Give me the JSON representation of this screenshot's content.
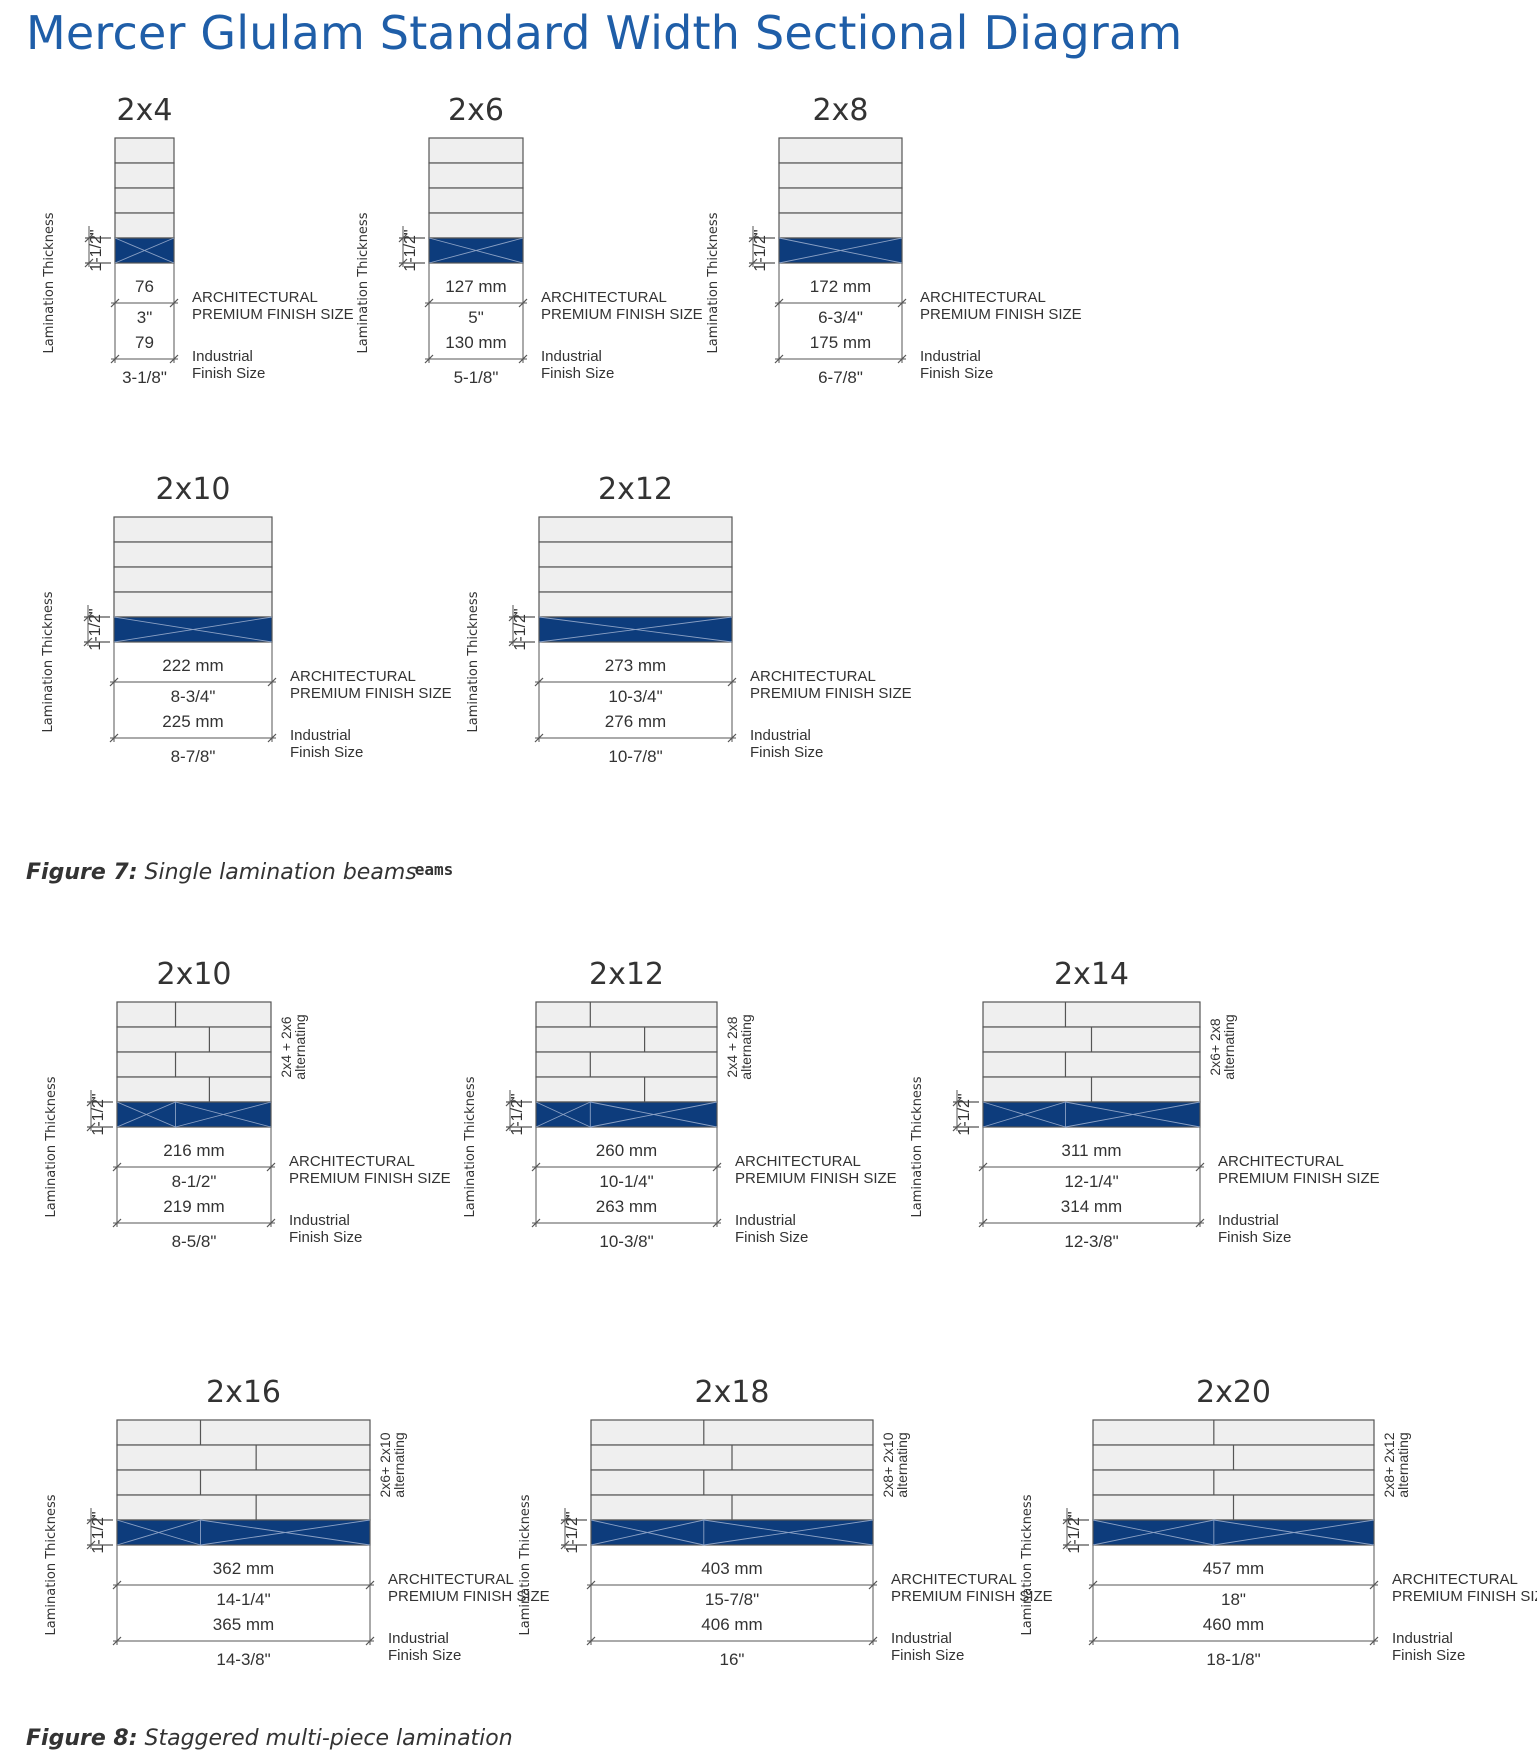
{
  "page_title": "Mercer Glulam Standard Width Sectional Diagram",
  "colors": {
    "title": "#1f5ea8",
    "lamination_highlight": "#0d3c7c",
    "lamination_board": "#efefef",
    "line": "#555555",
    "text": "#333333"
  },
  "labels": {
    "lamination_thickness": "Lamination Thickness",
    "lamination_dim": "1-1/2\"",
    "architectural_line1": "ARCHITECTURAL",
    "architectural_line2": "PREMIUM FINISH SIZE",
    "industrial_line1": "Industrial",
    "industrial_line2": "Finish Size"
  },
  "figure7": {
    "caption_label": "Figure 7:",
    "caption_text": "Single lamination beams",
    "caption_ghost": "eams",
    "beams": [
      {
        "size": "2x4",
        "arch_mm": "76",
        "arch_in": "3\"",
        "ind_mm": "79",
        "ind_in": "3-1/8\""
      },
      {
        "size": "2x6",
        "arch_mm": "127 mm",
        "arch_in": "5\"",
        "ind_mm": "130 mm",
        "ind_in": "5-1/8\""
      },
      {
        "size": "2x8",
        "arch_mm": "172 mm",
        "arch_in": "6-3/4\"",
        "ind_mm": "175 mm",
        "ind_in": "6-7/8\""
      },
      {
        "size": "2x10",
        "arch_mm": "222 mm",
        "arch_in": "8-3/4\"",
        "ind_mm": "225 mm",
        "ind_in": "8-7/8\""
      },
      {
        "size": "2x12",
        "arch_mm": "273 mm",
        "arch_in": "10-3/4\"",
        "ind_mm": "276 mm",
        "ind_in": "10-7/8\""
      }
    ]
  },
  "figure8": {
    "caption_label": "Figure 8:",
    "caption_text": "Staggered multi-piece lamination",
    "beams": [
      {
        "size": "2x10",
        "combo_line1": "2x4 + 2x6",
        "combo_line2": "alternating",
        "arch_mm": "216 mm",
        "arch_in": "8-1/2\"",
        "ind_mm": "219 mm",
        "ind_in": "8-5/8\""
      },
      {
        "size": "2x12",
        "combo_line1": "2x4 + 2x8",
        "combo_line2": "alternating",
        "arch_mm": "260 mm",
        "arch_in": "10-1/4\"",
        "ind_mm": "263 mm",
        "ind_in": "10-3/8\""
      },
      {
        "size": "2x14",
        "combo_line1": "2x6+ 2x8",
        "combo_line2": "alternating",
        "arch_mm": "311 mm",
        "arch_in": "12-1/4\"",
        "ind_mm": "314 mm",
        "ind_in": "12-3/8\""
      },
      {
        "size": "2x16",
        "combo_line1": "2x6+ 2x10",
        "combo_line2": "alternating",
        "arch_mm": "362 mm",
        "arch_in": "14-1/4\"",
        "ind_mm": "365 mm",
        "ind_in": "14-3/8\""
      },
      {
        "size": "2x18",
        "combo_line1": "2x8+ 2x10",
        "combo_line2": "alternating",
        "arch_mm": "403 mm",
        "arch_in": "15-7/8\"",
        "ind_mm": "406 mm",
        "ind_in": "16\""
      },
      {
        "size": "2x20",
        "combo_line1": "2x8+ 2x12",
        "combo_line2": "alternating",
        "arch_mm": "457 mm",
        "arch_in": "18\"",
        "ind_mm": "460 mm",
        "ind_in": "18-1/8\""
      }
    ]
  }
}
